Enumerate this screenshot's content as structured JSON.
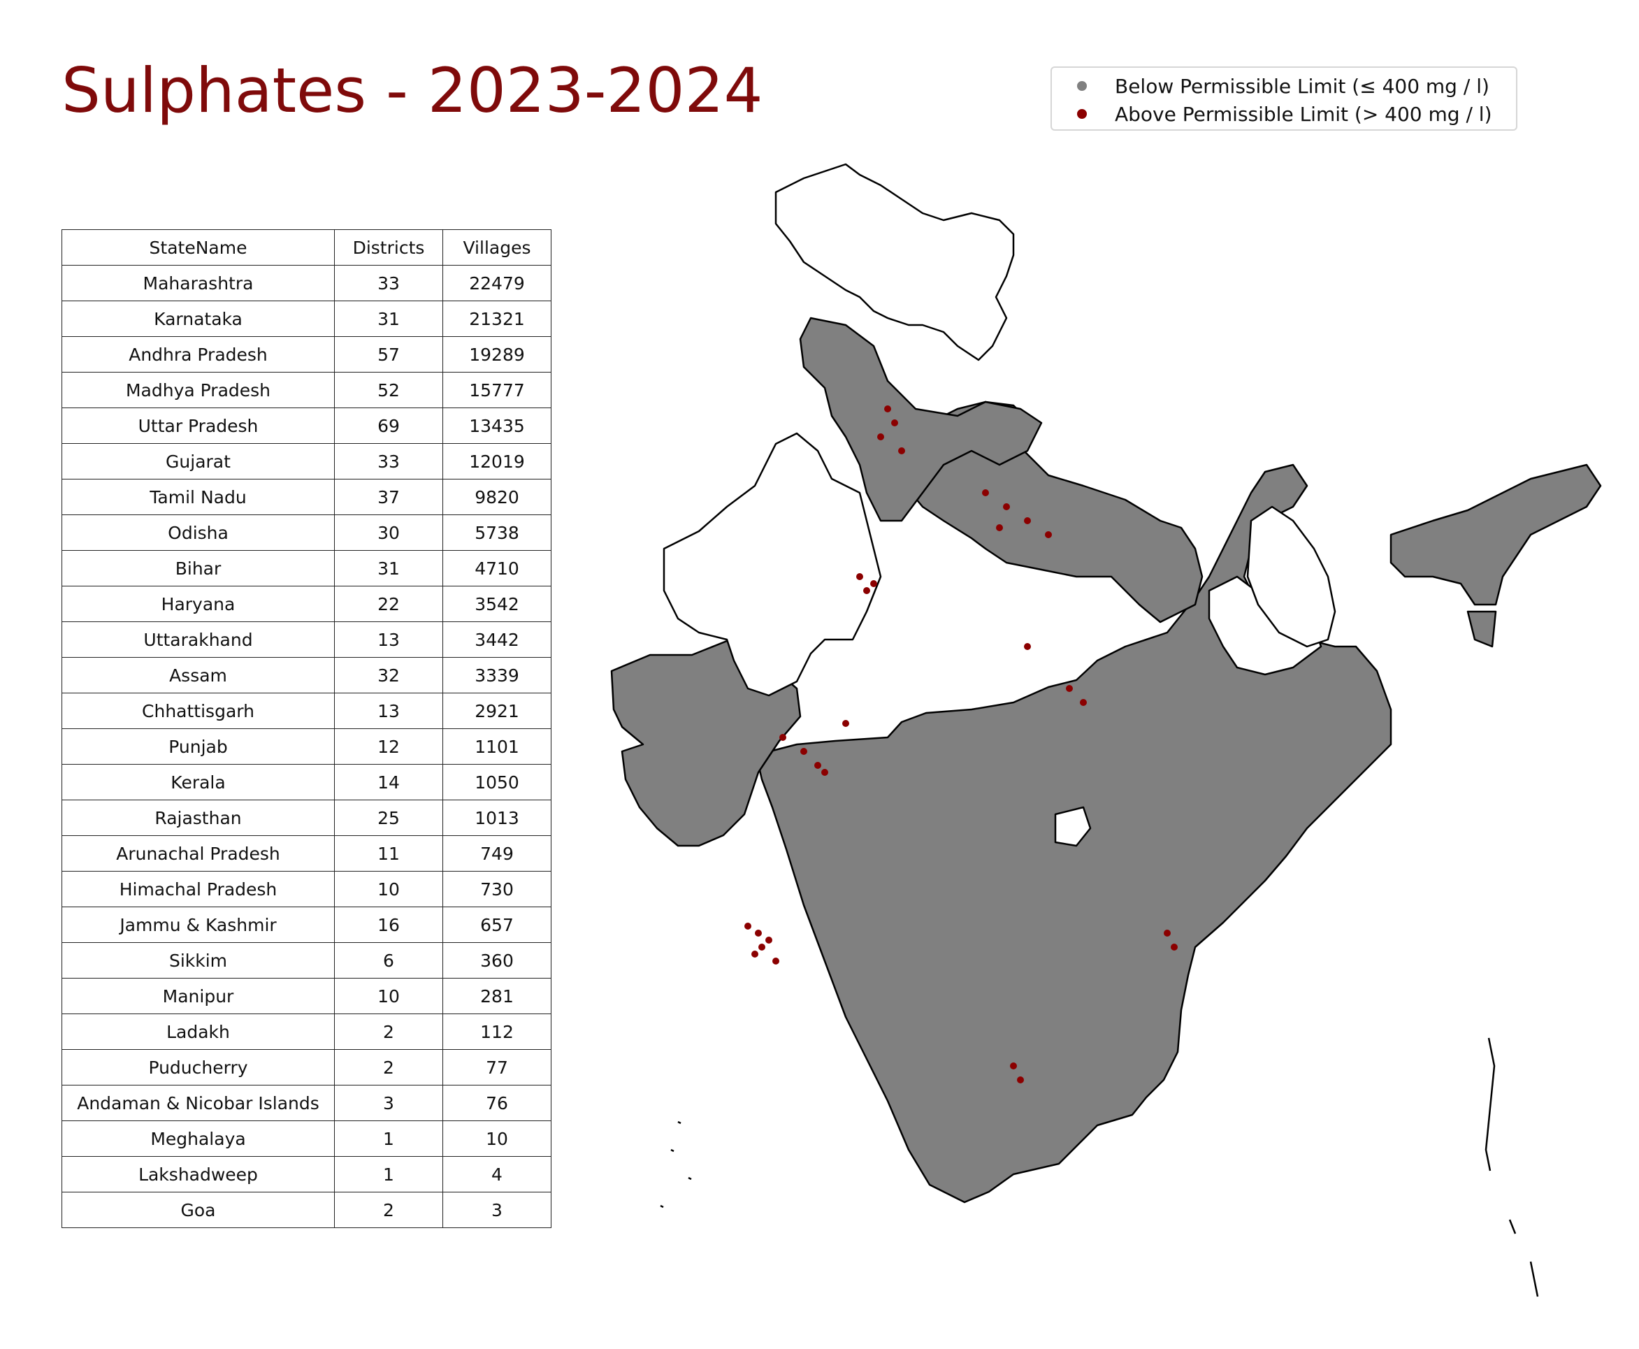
{
  "title": "Sulphates - 2023-2024",
  "legend": {
    "items": [
      {
        "label": "Below Permissible Limit (≤ 400 mg / l)",
        "color": "#808080"
      },
      {
        "label": "Above Permissible Limit (> 400 mg / l)",
        "color": "#8b0000"
      }
    ]
  },
  "table": {
    "headers": [
      "StateName",
      "Districts",
      "Villages"
    ],
    "rows": [
      [
        "Maharashtra",
        "33",
        "22479"
      ],
      [
        "Karnataka",
        "31",
        "21321"
      ],
      [
        "Andhra Pradesh",
        "57",
        "19289"
      ],
      [
        "Madhya Pradesh",
        "52",
        "15777"
      ],
      [
        "Uttar Pradesh",
        "69",
        "13435"
      ],
      [
        "Gujarat",
        "33",
        "12019"
      ],
      [
        "Tamil Nadu",
        "37",
        "9820"
      ],
      [
        "Odisha",
        "30",
        "5738"
      ],
      [
        "Bihar",
        "31",
        "4710"
      ],
      [
        "Haryana",
        "22",
        "3542"
      ],
      [
        "Uttarakhand",
        "13",
        "3442"
      ],
      [
        "Assam",
        "32",
        "3339"
      ],
      [
        "Chhattisgarh",
        "13",
        "2921"
      ],
      [
        "Punjab",
        "12",
        "1101"
      ],
      [
        "Kerala",
        "14",
        "1050"
      ],
      [
        "Rajasthan",
        "25",
        "1013"
      ],
      [
        "Arunachal Pradesh",
        "11",
        "749"
      ],
      [
        "Himachal Pradesh",
        "10",
        "730"
      ],
      [
        "Jammu & Kashmir",
        "16",
        "657"
      ],
      [
        "Sikkim",
        "6",
        "360"
      ],
      [
        "Manipur",
        "10",
        "281"
      ],
      [
        "Ladakh",
        "2",
        "112"
      ],
      [
        "Puducherry",
        "2",
        "77"
      ],
      [
        "Andaman & Nicobar Islands",
        "3",
        "76"
      ],
      [
        "Meghalaya",
        "1",
        "10"
      ],
      [
        "Lakshadweep",
        "1",
        "4"
      ],
      [
        "Goa",
        "2",
        "3"
      ]
    ]
  },
  "map": {
    "fill_color": "#808080",
    "outline_color": "#000000",
    "above_color": "#8b0000"
  }
}
